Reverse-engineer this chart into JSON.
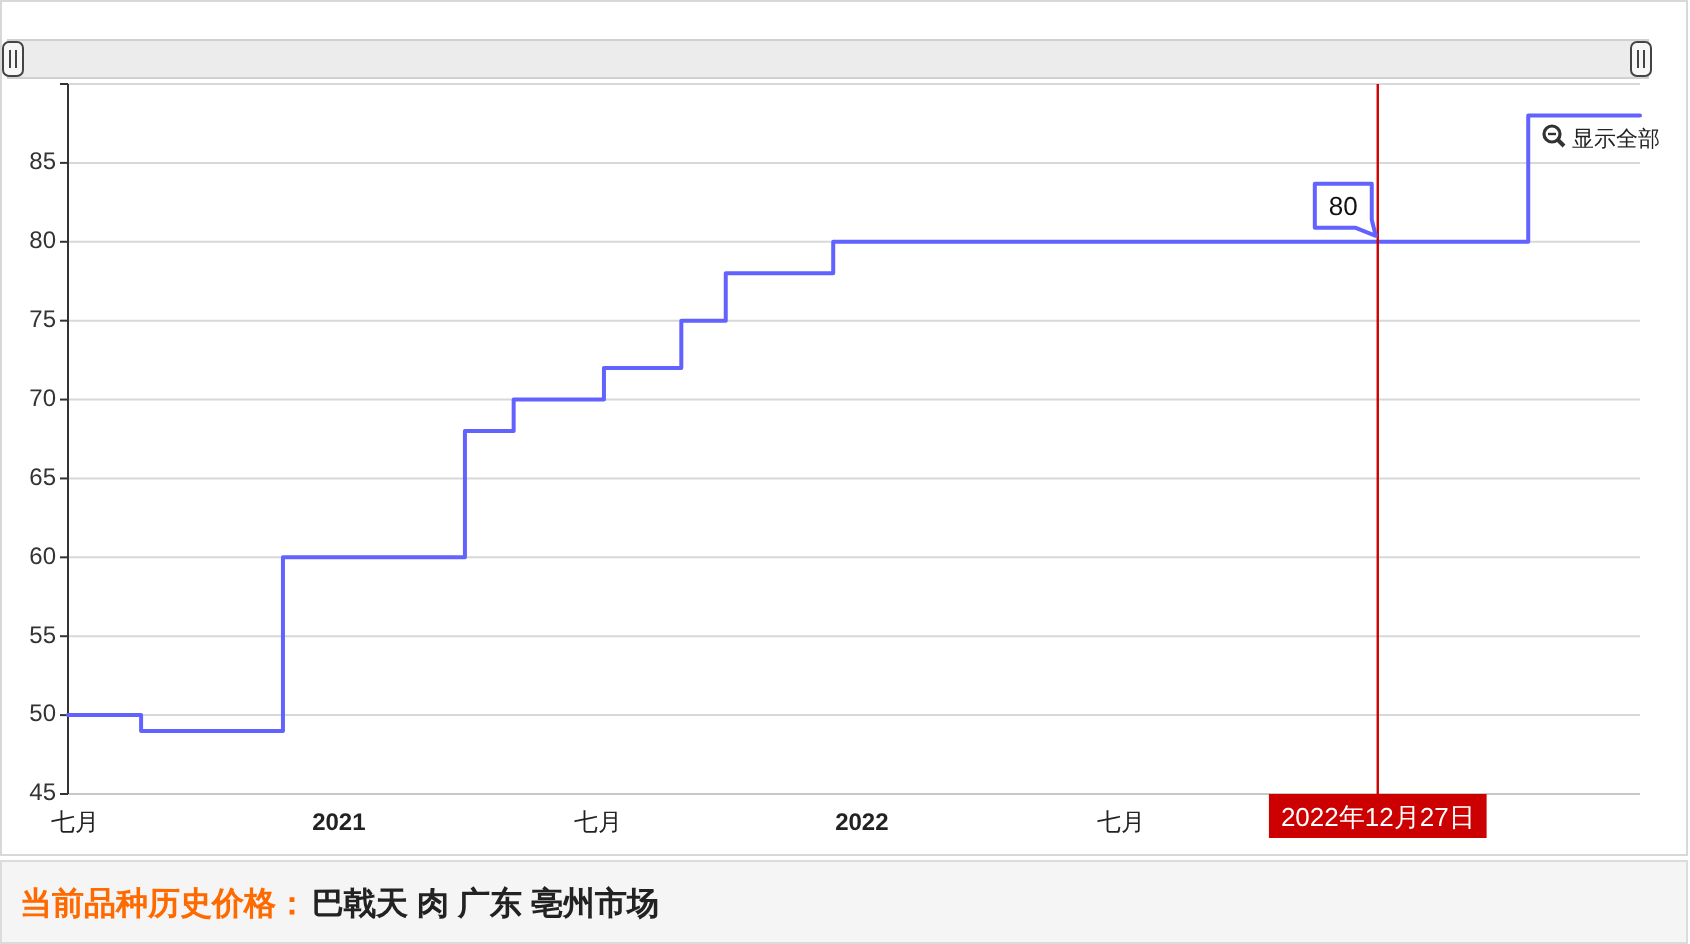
{
  "chart_data": {
    "type": "step",
    "title": "当前品种历史价格：",
    "subtitle": "巴戟天 肉 广东 亳州市场",
    "x": [
      "2020-06-26",
      "2020-08-16",
      "2020-11-23",
      "2021-03-30",
      "2021-05-03",
      "2021-07-05",
      "2021-08-28",
      "2021-09-28",
      "2021-12-12",
      "2023-04-11",
      "2023-06-28"
    ],
    "values": [
      50,
      49,
      60,
      68,
      70,
      72,
      75,
      78,
      80,
      88,
      88
    ],
    "color": "#6262ff",
    "xlim": [
      "2020-06-26",
      "2023-06-28"
    ],
    "xticks": [
      {
        "value": "2020-07-01",
        "label": "七月"
      },
      {
        "value": "2021-01-01",
        "label": "2021"
      },
      {
        "value": "2021-07-01",
        "label": "七月"
      },
      {
        "value": "2022-01-01",
        "label": "2022"
      },
      {
        "value": "2022-07-01",
        "label": "七月"
      }
    ],
    "ylim": [
      45,
      90
    ],
    "yticks": [
      45,
      50,
      55,
      60,
      65,
      70,
      75,
      80,
      85,
      {
        "value": 90,
        "label": null
      }
    ],
    "grid": "y",
    "marker": "none",
    "line_style": "solid",
    "ref_lines": [
      {
        "axis": "x",
        "value": "2022-12-27",
        "label": "2022年12月27日",
        "color": "#cc0000"
      }
    ],
    "annotations": [
      {
        "text": "80",
        "x": "2022-12-27",
        "y": 80
      },
      "显示全部"
    ]
  }
}
